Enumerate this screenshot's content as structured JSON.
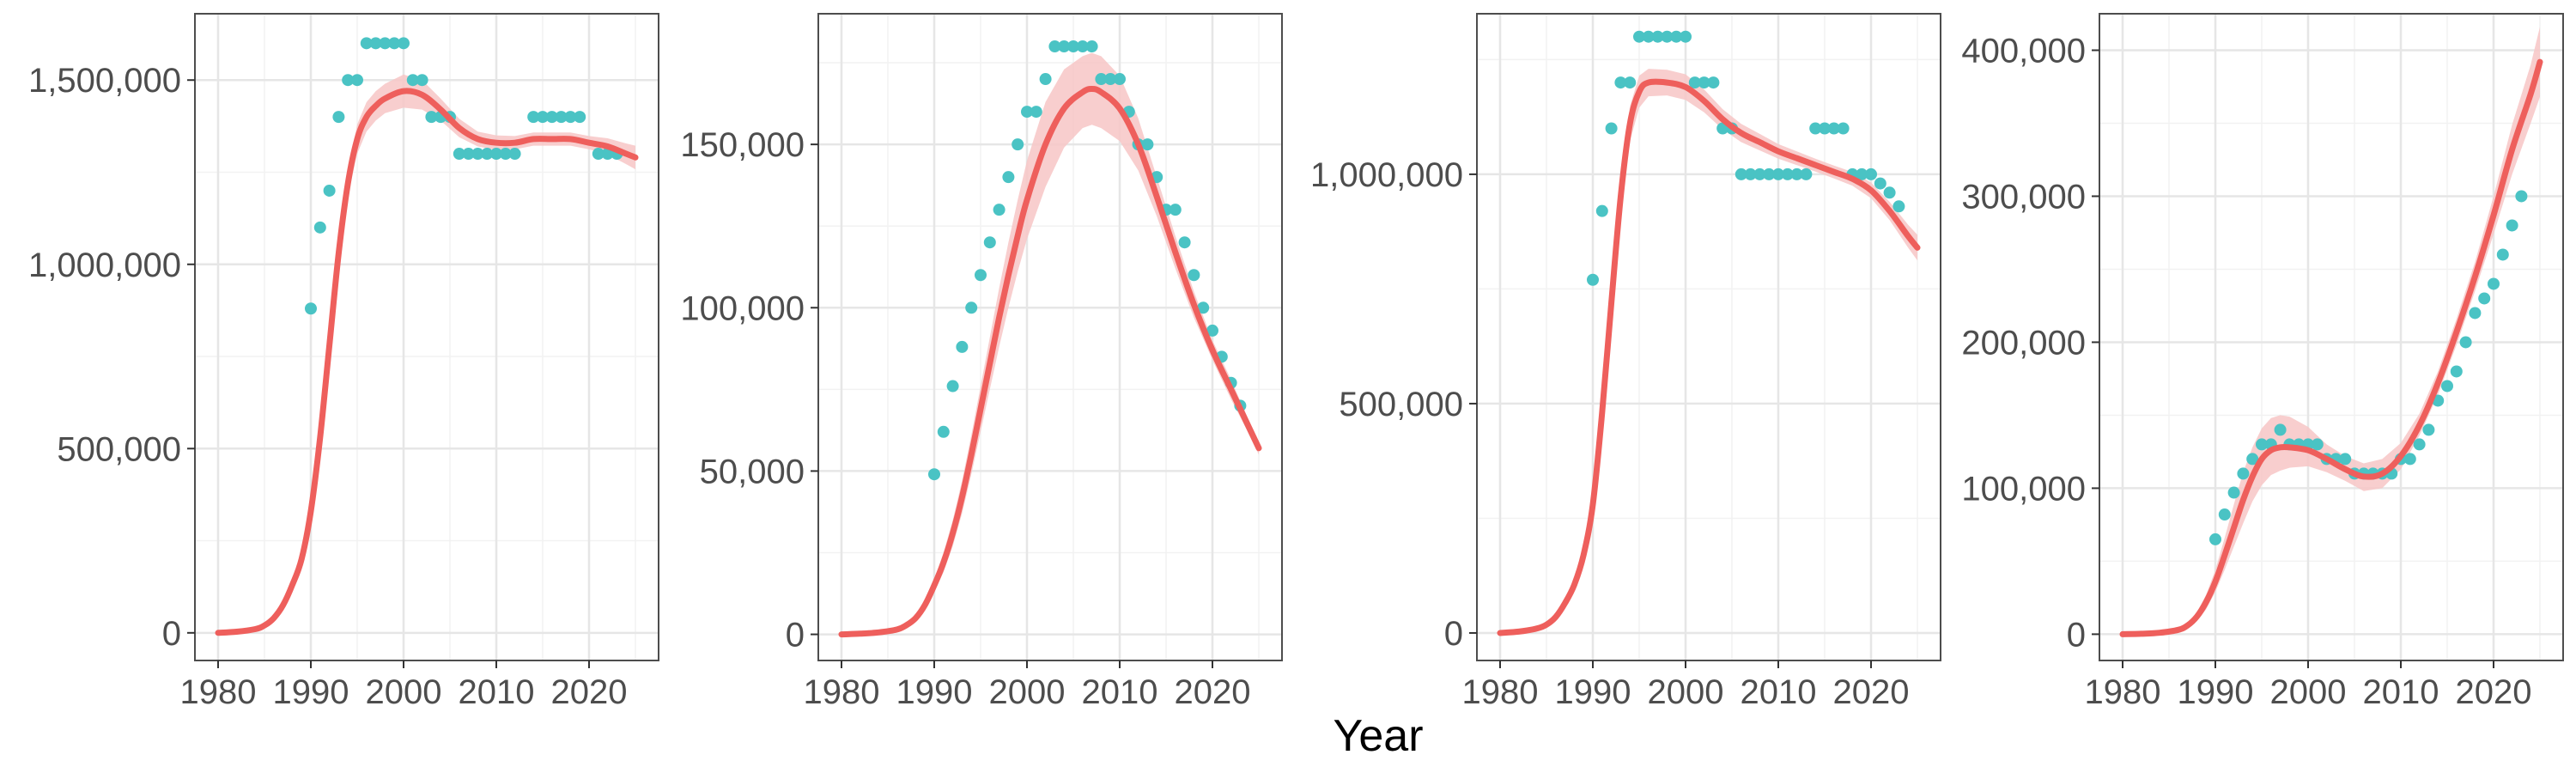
{
  "xlabel": "Year",
  "colors": {
    "observed": "#4ac3c4",
    "fit": "#ee5f5c",
    "band": "#f7c6c5",
    "grid_major": "#e6e6e6",
    "grid_minor": "#f2f2f2",
    "panel_border": "#4d4d4d"
  },
  "chart_data": [
    {
      "type": "scatter",
      "xlim": [
        1977.5,
        2027.5
      ],
      "ylim": [
        -75000,
        1680000
      ],
      "x_ticks": [
        1980,
        1990,
        2000,
        2010,
        2020
      ],
      "x_tick_labels": [
        "1980",
        "1990",
        "2000",
        "2010",
        "2020"
      ],
      "y_ticks": [
        0,
        500000,
        1000000,
        1500000
      ],
      "y_tick_labels": [
        "0",
        "500,000",
        "1,000,000",
        "1,500,000"
      ],
      "grid": true,
      "observed": {
        "x": [
          1990,
          1991,
          1992,
          1993,
          1994,
          1995,
          1996,
          1997,
          1998,
          1999,
          2000,
          2001,
          2002,
          2003,
          2004,
          2005,
          2006,
          2007,
          2008,
          2009,
          2010,
          2011,
          2012,
          2014,
          2015,
          2016,
          2017,
          2018,
          2019,
          2021,
          2022,
          2023
        ],
        "y": [
          880000,
          1100000,
          1200000,
          1400000,
          1500000,
          1500000,
          1600000,
          1600000,
          1600000,
          1600000,
          1600000,
          1500000,
          1500000,
          1400000,
          1400000,
          1400000,
          1300000,
          1300000,
          1300000,
          1300000,
          1300000,
          1300000,
          1300000,
          1400000,
          1400000,
          1400000,
          1400000,
          1400000,
          1400000,
          1300000,
          1300000,
          1300000
        ]
      },
      "fit": {
        "x": [
          1980,
          1982,
          1984,
          1985,
          1986,
          1987,
          1988,
          1989,
          1990,
          1991,
          1992,
          1993,
          1994,
          1995,
          1996,
          1997,
          1998,
          2000,
          2002,
          2004,
          2006,
          2008,
          2010,
          2012,
          2014,
          2016,
          2018,
          2020,
          2022,
          2024,
          2025
        ],
        "y": [
          0,
          3000,
          10000,
          20000,
          40000,
          75000,
          130000,
          200000,
          330000,
          530000,
          780000,
          1030000,
          1220000,
          1340000,
          1400000,
          1430000,
          1450000,
          1470000,
          1460000,
          1420000,
          1370000,
          1340000,
          1330000,
          1330000,
          1340000,
          1340000,
          1340000,
          1330000,
          1320000,
          1300000,
          1290000
        ],
        "lower": [
          0,
          2000,
          8000,
          16000,
          34000,
          65000,
          115000,
          180000,
          305000,
          500000,
          745000,
          995000,
          1185000,
          1300000,
          1360000,
          1390000,
          1410000,
          1425000,
          1420000,
          1390000,
          1345000,
          1320000,
          1310000,
          1312000,
          1322000,
          1322000,
          1322000,
          1312000,
          1298000,
          1272000,
          1258000
        ],
        "upper": [
          0,
          4000,
          12000,
          24000,
          46000,
          85000,
          145000,
          220000,
          355000,
          560000,
          815000,
          1065000,
          1255000,
          1380000,
          1440000,
          1470000,
          1490000,
          1515000,
          1500000,
          1450000,
          1395000,
          1360000,
          1350000,
          1348000,
          1358000,
          1358000,
          1358000,
          1348000,
          1342000,
          1328000,
          1322000
        ]
      }
    },
    {
      "type": "scatter",
      "xlim": [
        1977.5,
        2027.5
      ],
      "ylim": [
        -8000,
        190000
      ],
      "x_ticks": [
        1980,
        1990,
        2000,
        2010,
        2020
      ],
      "x_tick_labels": [
        "1980",
        "1990",
        "2000",
        "2010",
        "2020"
      ],
      "y_ticks": [
        0,
        50000,
        100000,
        150000
      ],
      "y_tick_labels": [
        "0",
        "50,000",
        "100,000",
        "150,000"
      ],
      "grid": true,
      "observed": {
        "x": [
          1990,
          1991,
          1992,
          1993,
          1994,
          1995,
          1996,
          1997,
          1998,
          1999,
          2000,
          2001,
          2002,
          2003,
          2004,
          2005,
          2006,
          2007,
          2008,
          2009,
          2010,
          2011,
          2012,
          2013,
          2014,
          2015,
          2016,
          2017,
          2018,
          2019,
          2020,
          2021,
          2022,
          2023
        ],
        "y": [
          49000,
          62000,
          76000,
          88000,
          100000,
          110000,
          120000,
          130000,
          140000,
          150000,
          160000,
          160000,
          170000,
          180000,
          180000,
          180000,
          180000,
          180000,
          170000,
          170000,
          170000,
          160000,
          150000,
          150000,
          140000,
          130000,
          130000,
          120000,
          110000,
          100000,
          93000,
          85000,
          77000,
          70000
        ]
      },
      "fit": {
        "x": [
          1980,
          1982,
          1984,
          1986,
          1987,
          1988,
          1989,
          1990,
          1991,
          1992,
          1993,
          1994,
          1995,
          1996,
          1997,
          1998,
          1999,
          2000,
          2002,
          2004,
          2006,
          2007,
          2008,
          2010,
          2012,
          2014,
          2016,
          2018,
          2020,
          2022,
          2024,
          2025
        ],
        "y": [
          0,
          200,
          600,
          1500,
          2800,
          5000,
          9000,
          15000,
          22000,
          31000,
          42000,
          55000,
          69000,
          83000,
          97000,
          110000,
          122000,
          133000,
          150000,
          161000,
          166000,
          167000,
          166000,
          161000,
          150000,
          134000,
          117000,
          101000,
          87000,
          75000,
          63000,
          57000
        ],
        "lower": [
          0,
          150,
          450,
          1200,
          2300,
          4200,
          7800,
          13000,
          19000,
          27000,
          37000,
          49000,
          62000,
          75000,
          88000,
          100000,
          111000,
          121000,
          137000,
          149000,
          155000,
          156000,
          155000,
          151000,
          142000,
          128000,
          112000,
          97000,
          84000,
          72000,
          61000,
          55000
        ],
        "upper": [
          0,
          250,
          750,
          1800,
          3300,
          5800,
          10200,
          17000,
          25000,
          35000,
          47000,
          61000,
          76000,
          91000,
          106000,
          120000,
          133000,
          145000,
          163000,
          173000,
          177000,
          178000,
          177000,
          171000,
          158000,
          140000,
          122000,
          105000,
          90000,
          78000,
          65000,
          59000
        ]
      }
    },
    {
      "type": "scatter",
      "xlim": [
        1977.5,
        2027.5
      ],
      "ylim": [
        -60000,
        1350000
      ],
      "x_ticks": [
        1980,
        1990,
        2000,
        2010,
        2020
      ],
      "x_tick_labels": [
        "1980",
        "1990",
        "2000",
        "2010",
        "2020"
      ],
      "y_ticks": [
        0,
        500000,
        1000000
      ],
      "y_tick_labels": [
        "0",
        "500,000",
        "1,000,000"
      ],
      "grid": true,
      "observed": {
        "x": [
          1990,
          1991,
          1992,
          1993,
          1994,
          1995,
          1996,
          1997,
          1998,
          1999,
          2000,
          2001,
          2002,
          2003,
          2004,
          2005,
          2006,
          2007,
          2008,
          2009,
          2010,
          2011,
          2012,
          2013,
          2014,
          2015,
          2016,
          2017,
          2018,
          2019,
          2020,
          2021,
          2022,
          2023
        ],
        "y": [
          770000,
          920000,
          1100000,
          1200000,
          1200000,
          1300000,
          1300000,
          1300000,
          1300000,
          1300000,
          1300000,
          1200000,
          1200000,
          1200000,
          1100000,
          1100000,
          1000000,
          1000000,
          1000000,
          1000000,
          1000000,
          1000000,
          1000000,
          1000000,
          1100000,
          1100000,
          1100000,
          1100000,
          1000000,
          1000000,
          1000000,
          980000,
          960000,
          930000
        ]
      },
      "fit": {
        "x": [
          1980,
          1982,
          1984,
          1985,
          1986,
          1987,
          1988,
          1989,
          1990,
          1991,
          1992,
          1993,
          1994,
          1995,
          1996,
          1998,
          2000,
          2002,
          2004,
          2006,
          2008,
          2010,
          2012,
          2014,
          2016,
          2018,
          2020,
          2022,
          2024,
          2025
        ],
        "y": [
          0,
          3000,
          10000,
          18000,
          35000,
          65000,
          105000,
          170000,
          280000,
          480000,
          720000,
          950000,
          1110000,
          1180000,
          1200000,
          1200000,
          1190000,
          1160000,
          1120000,
          1090000,
          1070000,
          1050000,
          1035000,
          1020000,
          1005000,
          990000,
          965000,
          920000,
          865000,
          840000
        ],
        "lower": [
          0,
          2000,
          8000,
          15000,
          30000,
          57000,
          93000,
          153000,
          258000,
          452000,
          688000,
          915000,
          1072000,
          1145000,
          1170000,
          1172000,
          1162000,
          1135000,
          1098000,
          1070000,
          1052000,
          1034000,
          1020000,
          1006000,
          991000,
          975000,
          948000,
          900000,
          840000,
          812000
        ],
        "upper": [
          0,
          4000,
          12000,
          21000,
          40000,
          73000,
          117000,
          187000,
          302000,
          508000,
          752000,
          985000,
          1148000,
          1215000,
          1230000,
          1228000,
          1218000,
          1185000,
          1142000,
          1110000,
          1088000,
          1066000,
          1050000,
          1034000,
          1019000,
          1005000,
          982000,
          940000,
          890000,
          868000
        ]
      }
    },
    {
      "type": "scatter",
      "xlim": [
        1977.5,
        2027.5
      ],
      "ylim": [
        -18000,
        425000
      ],
      "x_ticks": [
        1980,
        1990,
        2000,
        2010,
        2020
      ],
      "x_tick_labels": [
        "1980",
        "1990",
        "2000",
        "2010",
        "2020"
      ],
      "y_ticks": [
        0,
        100000,
        200000,
        300000,
        400000
      ],
      "y_tick_labels": [
        "0",
        "100,000",
        "200,000",
        "300,000",
        "400,000"
      ],
      "grid": true,
      "observed": {
        "x": [
          1990,
          1991,
          1992,
          1993,
          1994,
          1995,
          1996,
          1997,
          1998,
          1999,
          2000,
          2001,
          2002,
          2003,
          2004,
          2005,
          2006,
          2007,
          2008,
          2009,
          2010,
          2011,
          2012,
          2013,
          2014,
          2015,
          2016,
          2017,
          2018,
          2019,
          2020,
          2021,
          2022,
          2023
        ],
        "y": [
          65000,
          82000,
          97000,
          110000,
          120000,
          130000,
          130000,
          140000,
          130000,
          130000,
          130000,
          130000,
          120000,
          120000,
          120000,
          110000,
          110000,
          110000,
          110000,
          110000,
          120000,
          120000,
          130000,
          140000,
          160000,
          170000,
          180000,
          200000,
          220000,
          230000,
          240000,
          260000,
          280000,
          300000
        ]
      },
      "fit": {
        "x": [
          1980,
          1982,
          1984,
          1986,
          1987,
          1988,
          1989,
          1990,
          1991,
          1992,
          1993,
          1994,
          1995,
          1996,
          1997,
          1998,
          2000,
          2002,
          2004,
          2006,
          2008,
          2010,
          2012,
          2014,
          2016,
          2018,
          2020,
          2022,
          2024,
          2025
        ],
        "y": [
          0,
          300,
          1000,
          3000,
          6000,
          12000,
          22000,
          36000,
          54000,
          73000,
          92000,
          108000,
          120000,
          126000,
          128000,
          128000,
          126000,
          120000,
          113000,
          108000,
          110000,
          122000,
          143000,
          172000,
          207000,
          245000,
          287000,
          332000,
          370000,
          392000
        ],
        "lower": [
          0,
          200,
          700,
          2200,
          4500,
          9000,
          17000,
          29000,
          44000,
          60000,
          76000,
          91000,
          102000,
          109000,
          112000,
          114000,
          115000,
          111000,
          105000,
          98000,
          100000,
          113000,
          136000,
          164000,
          198000,
          235000,
          274000,
          315000,
          350000,
          368000
        ],
        "upper": [
          0,
          400,
          1300,
          3800,
          7500,
          15000,
          27000,
          44000,
          66000,
          89000,
          111000,
          128000,
          141000,
          148000,
          150000,
          149000,
          142000,
          130000,
          122000,
          117000,
          120000,
          131000,
          151000,
          180000,
          216000,
          255000,
          300000,
          349000,
          390000,
          416000
        ]
      }
    }
  ]
}
